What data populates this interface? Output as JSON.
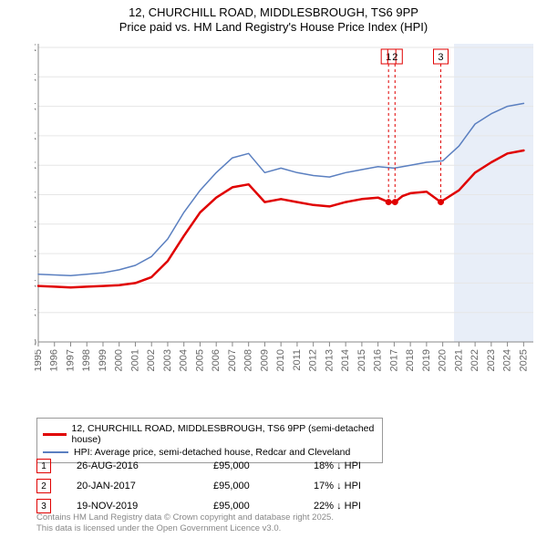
{
  "title": "12, CHURCHILL ROAD, MIDDLESBROUGH, TS6 9PP",
  "subtitle": "Price paid vs. HM Land Registry's House Price Index (HPI)",
  "chart": {
    "type": "line",
    "background_color": "#ffffff",
    "grid_color": "#e6e6e6",
    "axis_color": "#888888",
    "band_color": "#e8eef8",
    "band_from_year": 2020.7,
    "tick_label_color": "#666666",
    "tick_font_size": 11,
    "x_years": [
      1995,
      1996,
      1997,
      1998,
      1999,
      2000,
      2001,
      2002,
      2003,
      2004,
      2005,
      2006,
      2007,
      2008,
      2009,
      2010,
      2011,
      2012,
      2013,
      2014,
      2015,
      2016,
      2017,
      2018,
      2019,
      2020,
      2021,
      2022,
      2023,
      2024,
      2025
    ],
    "xlim": [
      1995,
      2025.6
    ],
    "ylim": [
      0,
      200000
    ],
    "ytick_step": 20000,
    "ytick_prefix": "£",
    "ytick_suffix": "K",
    "series": [
      {
        "name": "12, CHURCHILL ROAD, MIDDLESBROUGH, TS6 9PP (semi-detached house)",
        "color": "#e00000",
        "line_width": 2.5,
        "data": [
          [
            1995,
            38000
          ],
          [
            1996,
            37500
          ],
          [
            1997,
            37000
          ],
          [
            1998,
            37500
          ],
          [
            1999,
            38000
          ],
          [
            2000,
            38500
          ],
          [
            2001,
            40000
          ],
          [
            2002,
            44000
          ],
          [
            2003,
            55000
          ],
          [
            2004,
            72000
          ],
          [
            2005,
            88000
          ],
          [
            2006,
            98000
          ],
          [
            2007,
            105000
          ],
          [
            2008,
            107000
          ],
          [
            2009,
            95000
          ],
          [
            2010,
            97000
          ],
          [
            2011,
            95000
          ],
          [
            2012,
            93000
          ],
          [
            2013,
            92000
          ],
          [
            2014,
            95000
          ],
          [
            2015,
            97000
          ],
          [
            2016,
            98000
          ],
          [
            2016.65,
            95000
          ],
          [
            2017.05,
            95000
          ],
          [
            2017.5,
            99000
          ],
          [
            2018,
            101000
          ],
          [
            2019,
            102000
          ],
          [
            2019.88,
            95000
          ],
          [
            2020,
            96000
          ],
          [
            2021,
            103000
          ],
          [
            2022,
            115000
          ],
          [
            2023,
            122000
          ],
          [
            2024,
            128000
          ],
          [
            2025,
            130000
          ]
        ]
      },
      {
        "name": "HPI: Average price, semi-detached house, Redcar and Cleveland",
        "color": "#5a7fc0",
        "line_width": 1.5,
        "data": [
          [
            1995,
            46000
          ],
          [
            1996,
            45500
          ],
          [
            1997,
            45000
          ],
          [
            1998,
            46000
          ],
          [
            1999,
            47000
          ],
          [
            2000,
            49000
          ],
          [
            2001,
            52000
          ],
          [
            2002,
            58000
          ],
          [
            2003,
            70000
          ],
          [
            2004,
            88000
          ],
          [
            2005,
            103000
          ],
          [
            2006,
            115000
          ],
          [
            2007,
            125000
          ],
          [
            2008,
            128000
          ],
          [
            2009,
            115000
          ],
          [
            2010,
            118000
          ],
          [
            2011,
            115000
          ],
          [
            2012,
            113000
          ],
          [
            2013,
            112000
          ],
          [
            2014,
            115000
          ],
          [
            2015,
            117000
          ],
          [
            2016,
            119000
          ],
          [
            2017,
            118000
          ],
          [
            2018,
            120000
          ],
          [
            2019,
            122000
          ],
          [
            2020,
            123000
          ],
          [
            2021,
            133000
          ],
          [
            2022,
            148000
          ],
          [
            2023,
            155000
          ],
          [
            2024,
            160000
          ],
          [
            2025,
            162000
          ]
        ]
      }
    ],
    "sale_markers": [
      {
        "idx": "1",
        "year": 2016.65,
        "price": 95000,
        "date": "26-AUG-2016",
        "delta": "18% ↓ HPI"
      },
      {
        "idx": "2",
        "year": 2017.05,
        "price": 95000,
        "date": "20-JAN-2017",
        "delta": "17% ↓ HPI"
      },
      {
        "idx": "3",
        "year": 2019.88,
        "price": 95000,
        "date": "19-NOV-2019",
        "delta": "22% ↓ HPI"
      }
    ],
    "marker_color": "#e00000",
    "marker_radius": 3.5
  },
  "legend_border_color": "#999999",
  "price_fmt_prefix": "£",
  "footer_line1": "Contains HM Land Registry data © Crown copyright and database right 2025.",
  "footer_line2": "This data is licensed under the Open Government Licence v3.0."
}
